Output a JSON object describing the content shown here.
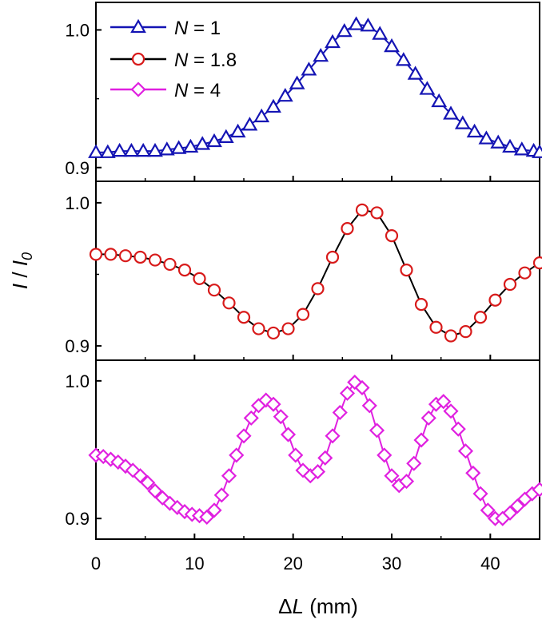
{
  "chart_data": {
    "type": "line",
    "layout": "stacked-panels-shared-x",
    "xlabel": "ΔL (mm)",
    "xlabel_parts": {
      "delta": "Δ",
      "var": "L",
      "unit": " (mm)"
    },
    "ylabel": "I / I0",
    "ylabel_parts": {
      "a": "I",
      "sep": " / ",
      "b": "I",
      "sub": "0"
    },
    "xlim": [
      0,
      45
    ],
    "x_ticks": [
      0,
      10,
      20,
      30,
      40
    ],
    "x_tick_labels": [
      "0",
      "10",
      "20",
      "30",
      "40"
    ],
    "legend": {
      "placement": "top-left",
      "entries": [
        {
          "var": "N",
          "rest": " = 1"
        },
        {
          "var": "N",
          "rest": " = 1.8"
        },
        {
          "var": "N",
          "rest": " = 4"
        }
      ]
    },
    "panels": [
      {
        "ylim": [
          0.89,
          1.02
        ],
        "y_ticks": [
          0.9,
          1.0
        ],
        "y_tick_labels": [
          "0.9",
          "1.0"
        ],
        "series": {
          "name": "N = 1",
          "color": "#1414b4",
          "marker": "triangle",
          "x": [
            0,
            1.2,
            2.4,
            3.6,
            4.8,
            6,
            7.2,
            8.4,
            9.6,
            10.8,
            12,
            13.2,
            14.4,
            15.6,
            16.8,
            18,
            19.2,
            20.4,
            21.6,
            22.8,
            24,
            25.2,
            26.4,
            27.6,
            28.8,
            30,
            31.2,
            32.4,
            33.6,
            34.8,
            36,
            37.2,
            38.4,
            39.6,
            40.8,
            42,
            43.2,
            44.4,
            45
          ],
          "y": [
            0.911,
            0.911,
            0.912,
            0.912,
            0.912,
            0.912,
            0.913,
            0.914,
            0.915,
            0.917,
            0.919,
            0.922,
            0.926,
            0.931,
            0.937,
            0.944,
            0.952,
            0.961,
            0.971,
            0.981,
            0.991,
            0.999,
            1.004,
            1.003,
            0.997,
            0.988,
            0.978,
            0.968,
            0.957,
            0.948,
            0.939,
            0.932,
            0.926,
            0.921,
            0.918,
            0.915,
            0.913,
            0.912,
            0.911
          ]
        }
      },
      {
        "ylim": [
          0.89,
          1.015
        ],
        "y_ticks": [
          0.9,
          1.0
        ],
        "y_tick_labels": [
          "0.9",
          "1.0"
        ],
        "series": {
          "name": "N = 1.8",
          "color": "#d81a1a",
          "line_color": "#000000",
          "marker": "circle",
          "x": [
            0,
            1.5,
            3,
            4.5,
            6,
            7.5,
            9,
            10.5,
            12,
            13.5,
            15,
            16.5,
            18,
            19.5,
            21,
            22.5,
            24,
            25.5,
            27,
            28.5,
            30,
            31.5,
            33,
            34.5,
            36,
            37.5,
            39,
            40.5,
            42,
            43.5,
            45
          ],
          "y": [
            0.964,
            0.964,
            0.963,
            0.962,
            0.96,
            0.957,
            0.953,
            0.947,
            0.939,
            0.93,
            0.92,
            0.912,
            0.909,
            0.912,
            0.922,
            0.94,
            0.962,
            0.982,
            0.995,
            0.993,
            0.977,
            0.953,
            0.929,
            0.913,
            0.907,
            0.91,
            0.92,
            0.932,
            0.943,
            0.951,
            0.958
          ]
        }
      },
      {
        "ylim": [
          0.885,
          1.015
        ],
        "y_ticks": [
          0.9,
          1.0
        ],
        "y_tick_labels": [
          "0.9",
          "1.0"
        ],
        "series": {
          "name": "N = 4",
          "color": "#e020e0",
          "marker": "diamond",
          "x": [
            0,
            0.75,
            1.5,
            2.25,
            3,
            3.75,
            4.5,
            5.25,
            6,
            6.75,
            7.5,
            8.25,
            9,
            9.75,
            10.5,
            11.25,
            12,
            12.75,
            13.5,
            14.25,
            15,
            15.75,
            16.5,
            17.25,
            18,
            18.75,
            19.5,
            20.25,
            21,
            21.75,
            22.5,
            23.25,
            24,
            24.75,
            25.5,
            26.25,
            27,
            27.75,
            28.5,
            29.25,
            30,
            30.75,
            31.5,
            32.25,
            33,
            33.75,
            34.5,
            35.25,
            36,
            36.75,
            37.5,
            38.25,
            39,
            39.75,
            40.5,
            41.25,
            42,
            42.75,
            43.5,
            44.25,
            45
          ],
          "y": [
            0.946,
            0.945,
            0.943,
            0.941,
            0.938,
            0.935,
            0.931,
            0.926,
            0.92,
            0.915,
            0.911,
            0.908,
            0.905,
            0.903,
            0.902,
            0.901,
            0.906,
            0.917,
            0.931,
            0.946,
            0.96,
            0.973,
            0.982,
            0.986,
            0.983,
            0.974,
            0.961,
            0.946,
            0.935,
            0.931,
            0.934,
            0.944,
            0.96,
            0.977,
            0.991,
            0.999,
            0.995,
            0.982,
            0.964,
            0.946,
            0.931,
            0.924,
            0.927,
            0.94,
            0.957,
            0.973,
            0.983,
            0.985,
            0.978,
            0.965,
            0.949,
            0.933,
            0.918,
            0.906,
            0.9,
            0.9,
            0.904,
            0.909,
            0.914,
            0.918,
            0.921
          ]
        }
      }
    ]
  }
}
